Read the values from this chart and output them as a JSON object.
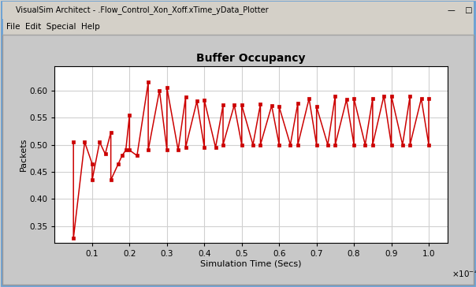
{
  "title": "Buffer Occupancy",
  "xlabel": "Simulation Time (Secs)",
  "ylabel": "Packets",
  "xlim": [
    0,
    0.000105
  ],
  "ylim": [
    0.32,
    0.645
  ],
  "ytick_vals": [
    0.35,
    0.4,
    0.45,
    0.5,
    0.55,
    0.6
  ],
  "ytick_labels": [
    "0.35",
    "0.40",
    "0.45",
    "0.50",
    "0.55",
    "0.60"
  ],
  "xtick_vals": [
    1e-05,
    2e-05,
    3e-05,
    4e-05,
    5e-05,
    6e-05,
    7e-05,
    8e-05,
    9e-05,
    0.0001
  ],
  "xtick_labels": [
    "0.1",
    "0.2",
    "0.3",
    "0.4",
    "0.5",
    "0.6",
    "0.7",
    "0.8",
    "0.9",
    "1.0"
  ],
  "line_color": "#cc0000",
  "marker": "s",
  "marker_size": 3.5,
  "line_width": 1.1,
  "outer_bg_color": "#d4d0c8",
  "inner_bg_color": "#c8c8c8",
  "plot_bg_color": "#ffffff",
  "grid_color": "#d0d0d0",
  "title_bar_text": "VisualSim Architect - .Flow_Control_Xon_Xoff.xTime_yData_Plotter",
  "menu_text": "File  Edit  Special  Help",
  "x_data": [
    5e-06,
    5e-06,
    8e-06,
    1e-05,
    1e-05,
    1.2e-05,
    1.35e-05,
    1.5e-05,
    1.5e-05,
    1.7e-05,
    1.8e-05,
    1.9e-05,
    2e-05,
    2e-05,
    2.2e-05,
    2.5e-05,
    2.5e-05,
    2.8e-05,
    3e-05,
    3e-05,
    3.3e-05,
    3.5e-05,
    3.5e-05,
    3.8e-05,
    4e-05,
    4e-05,
    4.3e-05,
    4.5e-05,
    4.5e-05,
    4.8e-05,
    5e-05,
    5e-05,
    5.3e-05,
    5.5e-05,
    5.5e-05,
    5.8e-05,
    6e-05,
    6e-05,
    6.3e-05,
    6.5e-05,
    6.5e-05,
    6.8e-05,
    7e-05,
    7e-05,
    7.3e-05,
    7.5e-05,
    7.5e-05,
    7.8e-05,
    8e-05,
    8e-05,
    8.3e-05,
    8.5e-05,
    8.5e-05,
    8.8e-05,
    9e-05,
    9e-05,
    9.3e-05,
    9.5e-05,
    9.5e-05,
    9.8e-05,
    0.0001,
    0.0001
  ],
  "y_data": [
    0.505,
    0.328,
    0.505,
    0.465,
    0.435,
    0.505,
    0.483,
    0.523,
    0.435,
    0.465,
    0.48,
    0.49,
    0.555,
    0.49,
    0.48,
    0.615,
    0.49,
    0.6,
    0.49,
    0.605,
    0.49,
    0.588,
    0.495,
    0.58,
    0.495,
    0.582,
    0.495,
    0.573,
    0.5,
    0.573,
    0.5,
    0.573,
    0.5,
    0.575,
    0.5,
    0.572,
    0.5,
    0.57,
    0.5,
    0.577,
    0.5,
    0.585,
    0.5,
    0.57,
    0.5,
    0.59,
    0.5,
    0.583,
    0.5,
    0.585,
    0.5,
    0.585,
    0.5,
    0.59,
    0.5,
    0.59,
    0.5,
    0.59,
    0.5,
    0.585,
    0.5,
    0.585
  ]
}
